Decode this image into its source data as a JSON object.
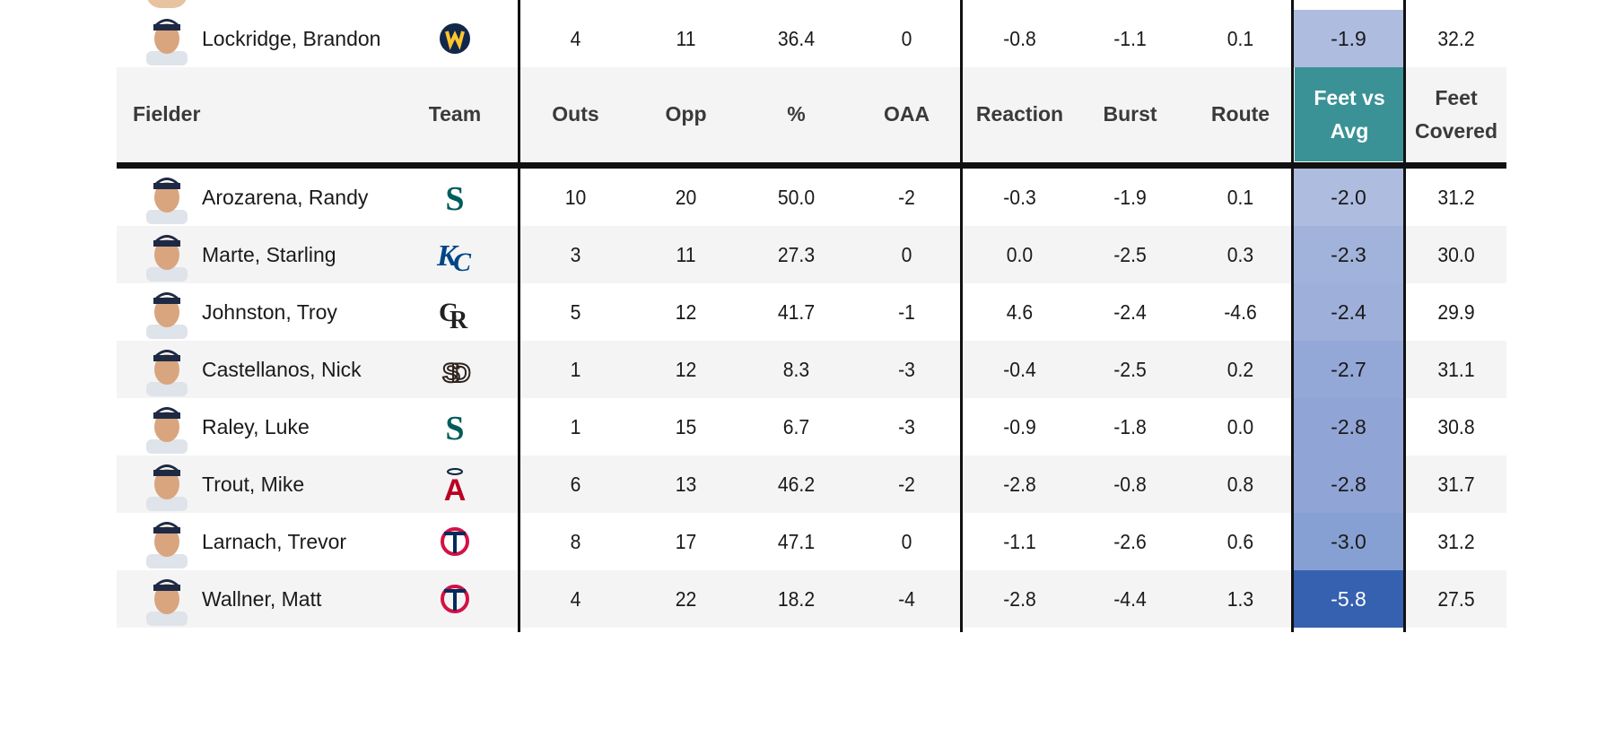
{
  "headers": {
    "fielder": "Fielder",
    "team": "Team",
    "outs": "Outs",
    "opp": "Opp",
    "pct": "%",
    "oaa": "OAA",
    "reaction": "Reaction",
    "burst": "Burst",
    "route": "Route",
    "feet_vs_avg_l1": "Feet vs",
    "feet_vs_avg_l2": "Avg",
    "feet_covered_l1": "Feet",
    "feet_covered_l2": "Covered"
  },
  "colors": {
    "header_accent": "#3a9296",
    "row_alt": "#f4f4f4"
  },
  "top_row": {
    "name": "Lockridge, Brandon",
    "team_icon": "brewers-logo-icon",
    "outs": "4",
    "opp": "11",
    "pct": "36.4",
    "oaa": "0",
    "reaction": "-0.8",
    "burst": "-1.1",
    "route": "0.1",
    "feet_vs_avg": "-1.9",
    "feet_covered": "32.2",
    "highlight_color": "#aebcdf"
  },
  "rows": [
    {
      "name": "Arozarena, Randy",
      "team_icon": "mariners-logo-icon",
      "outs": "10",
      "opp": "20",
      "pct": "50.0",
      "oaa": "-2",
      "reaction": "-0.3",
      "burst": "-1.9",
      "route": "0.1",
      "feet_vs_avg": "-2.0",
      "feet_covered": "31.2",
      "highlight_color": "#aebcdf"
    },
    {
      "name": "Marte, Starling",
      "team_icon": "royals-logo-icon",
      "outs": "3",
      "opp": "11",
      "pct": "27.3",
      "oaa": "0",
      "reaction": "0.0",
      "burst": "-2.5",
      "route": "0.3",
      "feet_vs_avg": "-2.3",
      "feet_covered": "30.0",
      "highlight_color": "#a2b3db"
    },
    {
      "name": "Johnston, Troy",
      "team_icon": "rockies-logo-icon",
      "outs": "5",
      "opp": "12",
      "pct": "41.7",
      "oaa": "-1",
      "reaction": "4.6",
      "burst": "-2.4",
      "route": "-4.6",
      "feet_vs_avg": "-2.4",
      "feet_covered": "29.9",
      "highlight_color": "#9eb0da"
    },
    {
      "name": "Castellanos, Nick",
      "team_icon": "padres-logo-icon",
      "outs": "1",
      "opp": "12",
      "pct": "8.3",
      "oaa": "-3",
      "reaction": "-0.4",
      "burst": "-2.5",
      "route": "0.2",
      "feet_vs_avg": "-2.7",
      "feet_covered": "31.1",
      "highlight_color": "#93a8d7"
    },
    {
      "name": "Raley, Luke",
      "team_icon": "mariners-logo-icon",
      "outs": "1",
      "opp": "15",
      "pct": "6.7",
      "oaa": "-3",
      "reaction": "-0.9",
      "burst": "-1.8",
      "route": "0.0",
      "feet_vs_avg": "-2.8",
      "feet_covered": "30.8",
      "highlight_color": "#90a5d5"
    },
    {
      "name": "Trout, Mike",
      "team_icon": "angels-logo-icon",
      "outs": "6",
      "opp": "13",
      "pct": "46.2",
      "oaa": "-2",
      "reaction": "-2.8",
      "burst": "-0.8",
      "route": "0.8",
      "feet_vs_avg": "-2.8",
      "feet_covered": "31.7",
      "highlight_color": "#90a5d5"
    },
    {
      "name": "Larnach, Trevor",
      "team_icon": "twins-logo-icon",
      "outs": "8",
      "opp": "17",
      "pct": "47.1",
      "oaa": "0",
      "reaction": "-1.1",
      "burst": "-2.6",
      "route": "0.6",
      "feet_vs_avg": "-3.0",
      "feet_covered": "31.2",
      "highlight_color": "#87a0d3"
    },
    {
      "name": "Wallner, Matt",
      "team_icon": "twins-logo-icon",
      "outs": "4",
      "opp": "22",
      "pct": "18.2",
      "oaa": "-4",
      "reaction": "-2.8",
      "burst": "-4.4",
      "route": "1.3",
      "feet_vs_avg": "-5.8",
      "feet_covered": "27.5",
      "highlight_color": "#3660b0"
    }
  ]
}
